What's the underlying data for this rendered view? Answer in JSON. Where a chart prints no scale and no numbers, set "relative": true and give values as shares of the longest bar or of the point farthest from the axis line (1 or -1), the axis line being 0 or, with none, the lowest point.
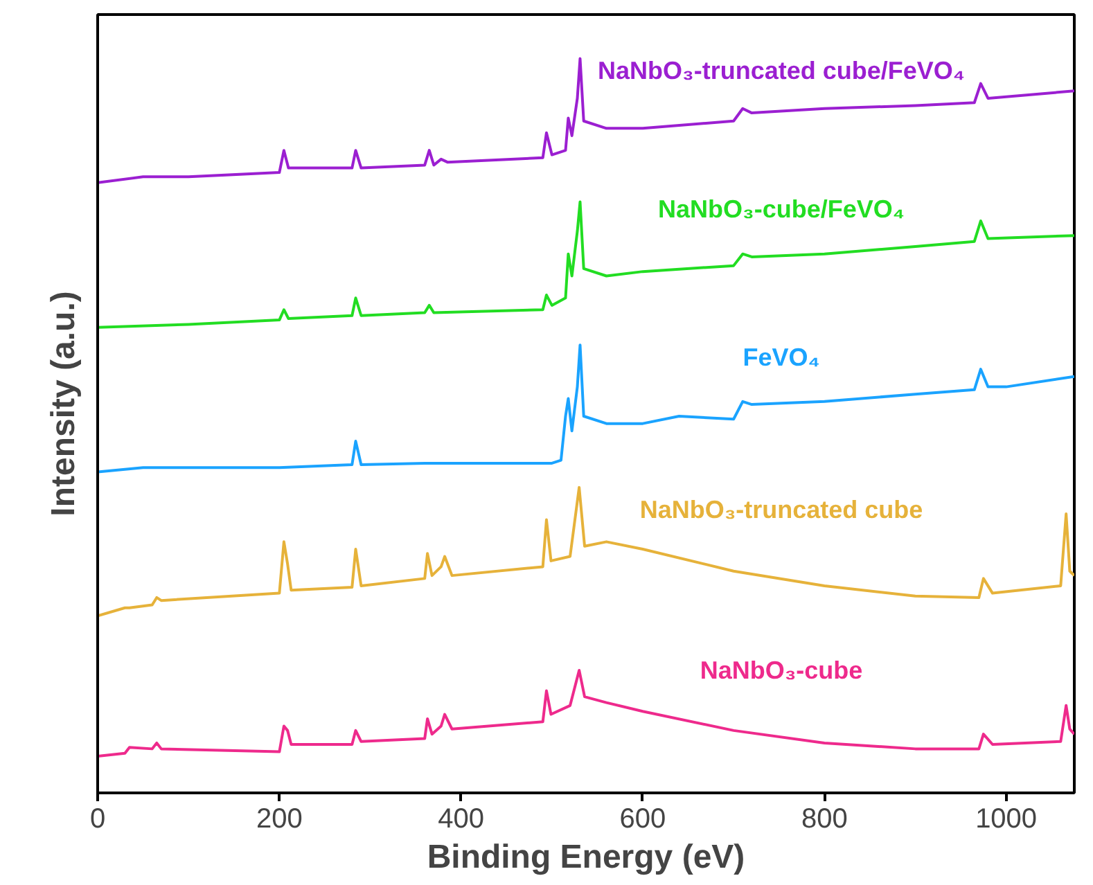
{
  "chart_data": {
    "type": "line",
    "relative": true,
    "xlabel": "Binding Energy (eV)",
    "ylabel": "Intensity (a.u.)",
    "xlim": [
      0,
      1075
    ],
    "xticks": [
      0,
      200,
      400,
      600,
      800,
      1000
    ],
    "tick_labels": "x",
    "grid": false,
    "x": [
      0,
      30,
      35,
      60,
      65,
      70,
      200,
      205,
      209,
      213,
      280,
      284,
      290,
      360,
      363,
      368,
      378,
      382,
      390,
      490,
      494,
      499,
      520,
      530,
      536,
      560,
      600,
      700,
      800,
      900,
      970,
      975,
      985,
      1060,
      1066,
      1070,
      1075
    ],
    "series": [
      {
        "name": "NaNbO₃-cube",
        "color": "#ee2a8c",
        "values": [
          0.05,
          0.054,
          0.062,
          0.06,
          0.068,
          0.06,
          0.056,
          0.091,
          0.085,
          0.066,
          0.066,
          0.085,
          0.07,
          0.074,
          0.101,
          0.08,
          0.091,
          0.107,
          0.087,
          0.097,
          0.139,
          0.107,
          0.119,
          0.167,
          0.131,
          0.123,
          0.111,
          0.085,
          0.068,
          0.06,
          0.06,
          0.08,
          0.066,
          0.07,
          0.119,
          0.087,
          0.08
        ]
      },
      {
        "name": "NaNbO₃-truncated cube",
        "color": "#e6b23a",
        "values": [
          0.241,
          0.252,
          0.252,
          0.256,
          0.266,
          0.262,
          0.272,
          0.342,
          0.312,
          0.276,
          0.28,
          0.332,
          0.282,
          0.292,
          0.326,
          0.296,
          0.308,
          0.322,
          0.296,
          0.308,
          0.372,
          0.316,
          0.322,
          0.416,
          0.336,
          0.342,
          0.332,
          0.302,
          0.282,
          0.268,
          0.266,
          0.292,
          0.272,
          0.282,
          0.38,
          0.302,
          0.296
        ]
      },
      {
        "name": "FeVO₄",
        "color": "#1aa3ff",
        "x": [
          0,
          50,
          100,
          200,
          280,
          284,
          290,
          360,
          500,
          510,
          515,
          518,
          522,
          528,
          531,
          535,
          560,
          600,
          640,
          700,
          710,
          720,
          800,
          900,
          965,
          972,
          980,
          1000,
          1075
        ],
        "values": [
          0.437,
          0.443,
          0.443,
          0.443,
          0.447,
          0.479,
          0.447,
          0.449,
          0.449,
          0.453,
          0.513,
          0.537,
          0.493,
          0.553,
          0.61,
          0.513,
          0.503,
          0.503,
          0.513,
          0.509,
          0.533,
          0.529,
          0.533,
          0.543,
          0.549,
          0.577,
          0.553,
          0.553,
          0.567
        ]
      },
      {
        "name": "NaNbO₃-cube/FeVO₄",
        "color": "#22dd22",
        "x": [
          0,
          100,
          200,
          205,
          210,
          280,
          284,
          290,
          360,
          365,
          370,
          490,
          494,
          500,
          515,
          518,
          522,
          528,
          531,
          535,
          560,
          600,
          700,
          710,
          720,
          800,
          900,
          965,
          972,
          980,
          1075
        ],
        "values": [
          0.634,
          0.638,
          0.644,
          0.658,
          0.646,
          0.65,
          0.674,
          0.65,
          0.654,
          0.664,
          0.654,
          0.658,
          0.678,
          0.664,
          0.674,
          0.734,
          0.704,
          0.765,
          0.805,
          0.714,
          0.704,
          0.71,
          0.718,
          0.734,
          0.73,
          0.734,
          0.744,
          0.751,
          0.779,
          0.755,
          0.759
        ]
      },
      {
        "name": "NaNbO₃-truncated cube/FeVO₄",
        "color": "#9b1fd1",
        "x": [
          0,
          50,
          100,
          200,
          205,
          210,
          280,
          284,
          290,
          360,
          365,
          370,
          378,
          385,
          490,
          494,
          500,
          515,
          518,
          522,
          528,
          531,
          535,
          560,
          600,
          700,
          710,
          720,
          800,
          900,
          965,
          972,
          980,
          1075
        ],
        "values": [
          0.831,
          0.839,
          0.839,
          0.845,
          0.875,
          0.851,
          0.851,
          0.875,
          0.851,
          0.855,
          0.875,
          0.855,
          0.863,
          0.859,
          0.865,
          0.899,
          0.869,
          0.875,
          0.919,
          0.895,
          0.946,
          1.0,
          0.915,
          0.905,
          0.905,
          0.915,
          0.932,
          0.926,
          0.932,
          0.936,
          0.94,
          0.966,
          0.946,
          0.956
        ]
      }
    ]
  }
}
